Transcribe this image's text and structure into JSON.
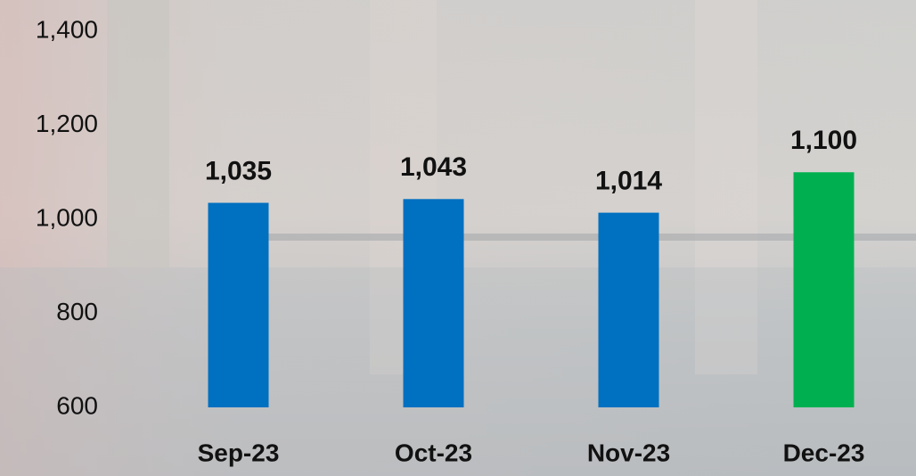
{
  "chart_data": {
    "type": "bar",
    "categories": [
      "Sep-23",
      "Oct-23",
      "Nov-23",
      "Dec-23"
    ],
    "values": [
      1035,
      1043,
      1014,
      1100
    ],
    "value_labels": [
      "1,035",
      "1,043",
      "1,014",
      "1,100"
    ],
    "colors": [
      "#0070c0",
      "#0070c0",
      "#0070c0",
      "#00b050"
    ],
    "ylim": [
      600,
      1400
    ],
    "yticks": [
      600,
      800,
      {
        "value": 1000,
        "label": "1,000"
      },
      {
        "value": 1200,
        "label": "1,200"
      },
      {
        "value": 1400,
        "label": "1,400"
      }
    ],
    "grid": false
  }
}
